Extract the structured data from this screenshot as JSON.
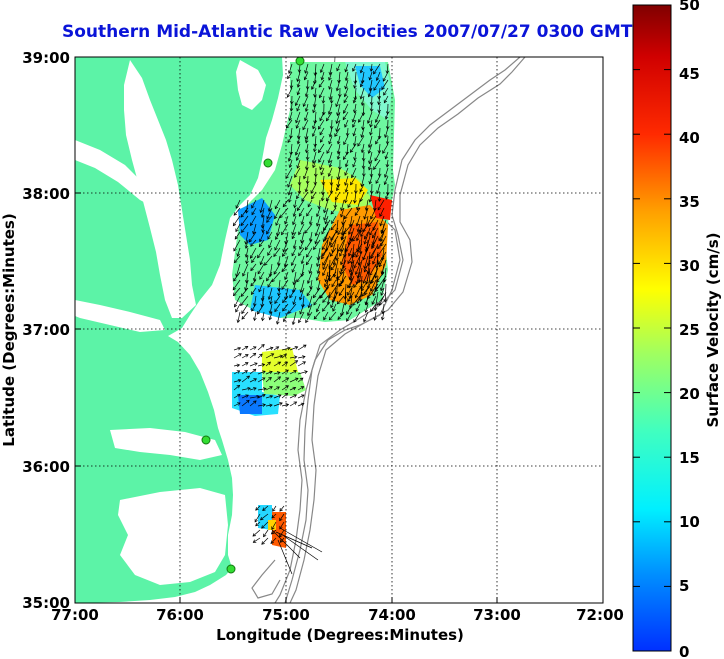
{
  "title": "Southern Mid-Atlantic Raw Velocities 2007/07/27 0300 GMT",
  "xlabel": "Longitude (Degrees:Minutes)",
  "ylabel": "Latitude (Degrees:Minutes)",
  "x_ticks": [
    "77:00",
    "76:00",
    "75:00",
    "74:00",
    "73:00",
    "72:00"
  ],
  "y_ticks": [
    "39:00",
    "38:00",
    "37:00",
    "36:00",
    "35:00"
  ],
  "colorbar": {
    "label": "Surface Velocity (cm/s)",
    "ticks": [
      "50",
      "45",
      "40",
      "35",
      "30",
      "25",
      "20",
      "15",
      "10",
      "5",
      "0"
    ]
  },
  "colors": {
    "land": "#5cf3a7",
    "title": "#0a14d8",
    "station": "#33dd33",
    "bathymetry": "#888888"
  }
}
